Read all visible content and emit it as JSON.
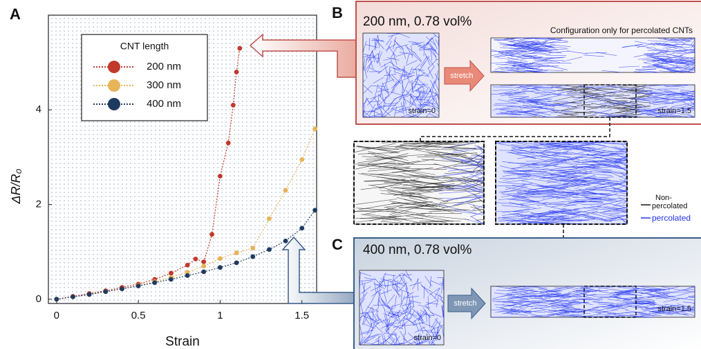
{
  "chart_data": {
    "type": "line",
    "panel_label": "A",
    "x_label": "Strain",
    "y_label": "ΔR/R₀",
    "xlim": [
      -0.05,
      1.59
    ],
    "ylim": [
      -0.09,
      6.0
    ],
    "xticks": [
      0,
      0.5,
      1,
      1.5
    ],
    "yticks": [
      0,
      2,
      4
    ],
    "legend_title": "CNT length",
    "legend": "upper-left",
    "series": [
      {
        "name": "200 nm",
        "color": "#c0392b",
        "x": [
          0,
          0.1,
          0.2,
          0.3,
          0.4,
          0.5,
          0.6,
          0.7,
          0.8,
          0.85,
          0.9,
          0.95,
          1.0,
          1.05,
          1.08,
          1.1,
          1.12
        ],
        "values": [
          0,
          0.06,
          0.12,
          0.18,
          0.25,
          0.32,
          0.42,
          0.55,
          0.72,
          0.85,
          0.79,
          1.37,
          2.6,
          3.3,
          4.1,
          4.8,
          5.3
        ]
      },
      {
        "name": "300 nm",
        "color": "#e8b45a",
        "x": [
          0,
          0.1,
          0.2,
          0.3,
          0.4,
          0.5,
          0.6,
          0.7,
          0.8,
          0.9,
          1.0,
          1.1,
          1.2,
          1.3,
          1.4,
          1.5,
          1.58
        ],
        "values": [
          0,
          0.05,
          0.1,
          0.16,
          0.22,
          0.29,
          0.37,
          0.46,
          0.57,
          0.7,
          0.86,
          0.98,
          1.08,
          1.7,
          2.3,
          2.95,
          3.6
        ]
      },
      {
        "name": "400 nm",
        "color": "#1f3a5f",
        "x": [
          0,
          0.1,
          0.2,
          0.3,
          0.4,
          0.5,
          0.6,
          0.7,
          0.8,
          0.9,
          1.0,
          1.1,
          1.2,
          1.3,
          1.4,
          1.5,
          1.58
        ],
        "values": [
          0,
          0.05,
          0.1,
          0.16,
          0.22,
          0.28,
          0.35,
          0.42,
          0.5,
          0.58,
          0.67,
          0.77,
          0.9,
          1.05,
          1.23,
          1.5,
          1.88
        ]
      }
    ]
  },
  "figure": {
    "panel_b": {
      "label": "B",
      "title": "200 nm, 0.78 vol%",
      "note": "Configuration only for percolated CNTs",
      "arrow": "stretch",
      "strain_before": "strain=0",
      "strain_after": "strain=1.5"
    },
    "legend": {
      "non_percolated": [
        "Non-",
        "percolated"
      ],
      "percolated": "percolated"
    },
    "panel_c": {
      "label": "C",
      "title": "400 nm, 0.78 vol%",
      "arrow": "stretch",
      "strain_before": "strain=0",
      "strain_after": "strain=1.5"
    }
  }
}
